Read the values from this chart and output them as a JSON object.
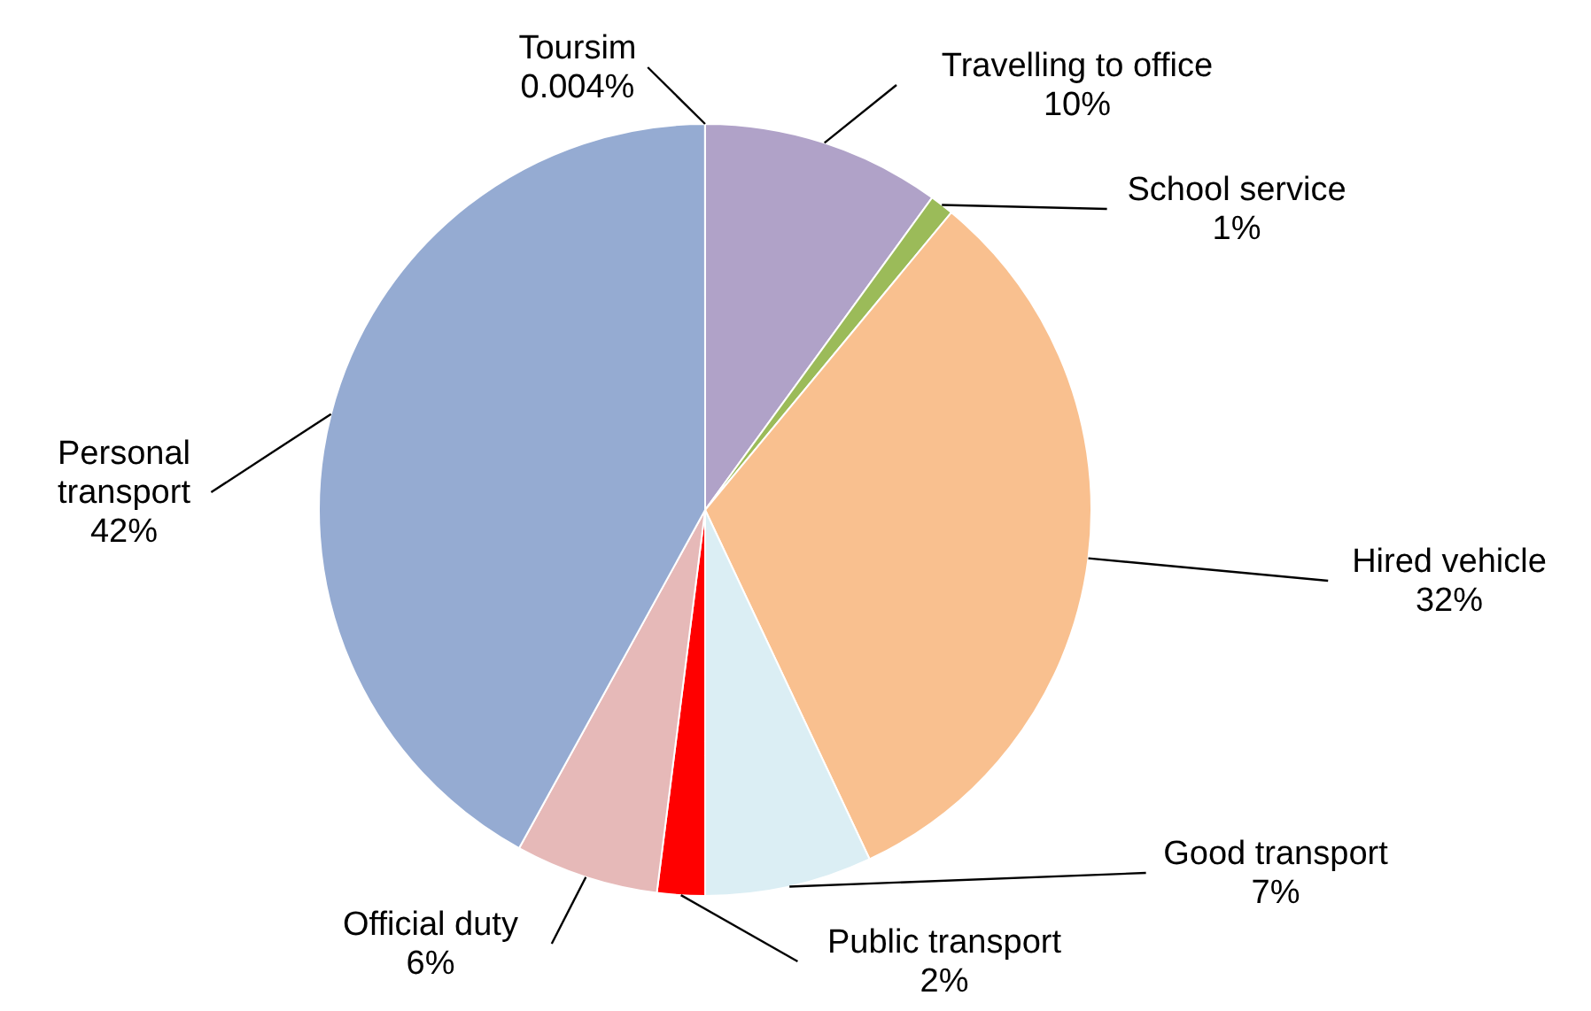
{
  "chart_data": {
    "type": "pie",
    "categories": [
      "Travelling to office",
      "School service",
      "Hired vehicle",
      "Good transport",
      "Public transport",
      "Official duty",
      "Personal transport",
      "Toursim"
    ],
    "values": [
      10,
      1,
      32,
      7,
      2,
      6,
      42,
      0.004
    ],
    "value_labels": [
      "10%",
      "1%",
      "32%",
      "7%",
      "2%",
      "6%",
      "42%",
      "0.004%"
    ],
    "colors": [
      "#b0a2c8",
      "#9bbb59",
      "#f9c08f",
      "#dbeef4",
      "#ff0000",
      "#e6b9b8",
      "#95abd2",
      "#333333"
    ]
  }
}
